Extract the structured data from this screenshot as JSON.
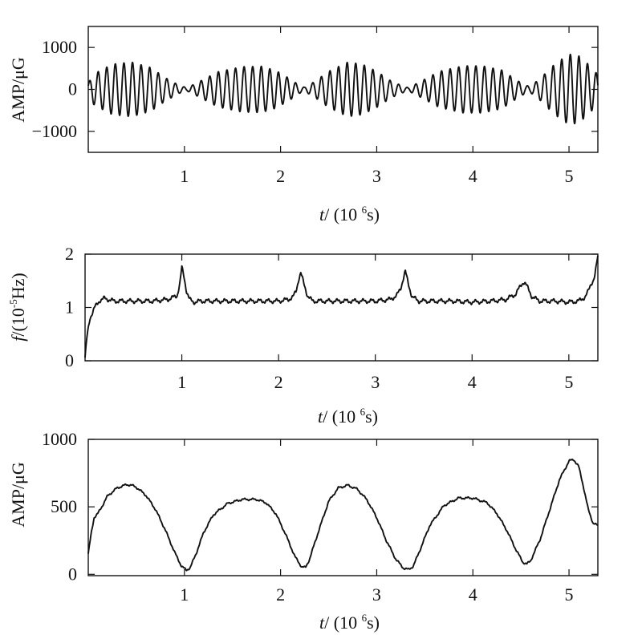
{
  "chart_data": [
    {
      "type": "line",
      "ylabel": "AMP/μG",
      "xlabel_italic": "t",
      "xlabel_text": "/ (10",
      "xlabel_sup": "6",
      "xlabel_unit": "s)",
      "xlim": [
        0,
        5.3
      ],
      "ylim": [
        -1500,
        1500
      ],
      "xticks": [
        1,
        2,
        3,
        4,
        5
      ],
      "yticks": [
        -1000,
        0,
        1000
      ],
      "ytick_labels": [
        "−1000",
        "0",
        "1000"
      ],
      "signal": {
        "carrier_frequency_per_1e6s": 11.2,
        "envelope_amp": [
          [
            0,
            150
          ],
          [
            0.05,
            350
          ],
          [
            0.1,
            420
          ],
          [
            0.25,
            600
          ],
          [
            0.45,
            650
          ],
          [
            0.65,
            520
          ],
          [
            0.8,
            280
          ],
          [
            0.95,
            90
          ],
          [
            1.03,
            40
          ],
          [
            1.15,
            180
          ],
          [
            1.35,
            420
          ],
          [
            1.6,
            540
          ],
          [
            1.8,
            550
          ],
          [
            1.95,
            450
          ],
          [
            2.1,
            250
          ],
          [
            2.2,
            90
          ],
          [
            2.25,
            50
          ],
          [
            2.35,
            180
          ],
          [
            2.5,
            430
          ],
          [
            2.7,
            650
          ],
          [
            2.85,
            600
          ],
          [
            3.0,
            430
          ],
          [
            3.15,
            200
          ],
          [
            3.28,
            70
          ],
          [
            3.33,
            40
          ],
          [
            3.45,
            180
          ],
          [
            3.65,
            430
          ],
          [
            3.9,
            560
          ],
          [
            4.1,
            560
          ],
          [
            4.3,
            460
          ],
          [
            4.45,
            230
          ],
          [
            4.55,
            90
          ],
          [
            4.6,
            80
          ],
          [
            4.7,
            260
          ],
          [
            4.85,
            600
          ],
          [
            5.0,
            840
          ],
          [
            5.1,
            800
          ],
          [
            5.2,
            600
          ],
          [
            5.3,
            350
          ]
        ]
      }
    },
    {
      "type": "line",
      "ylabel": "f",
      "ylabel_text": "/(10",
      "ylabel_sup": "-5",
      "ylabel_unit": "Hz)",
      "xlabel_italic": "t",
      "xlabel_text": "/ (10",
      "xlabel_sup": "6",
      "xlabel_unit": "s)",
      "xlim": [
        0,
        5.3
      ],
      "ylim": [
        0,
        2
      ],
      "xticks": [
        1,
        2,
        3,
        4,
        5
      ],
      "yticks": [
        0,
        1,
        2
      ],
      "ytick_labels": [
        "0",
        "1",
        "2"
      ],
      "series": [
        {
          "x": [
            0,
            0.02,
            0.05,
            0.1,
            0.15,
            0.2,
            0.3,
            0.5,
            0.7,
            0.85,
            0.9,
            0.95,
            0.98,
            1.0,
            1.02,
            1.05,
            1.08,
            1.12,
            1.2,
            1.4,
            1.6,
            1.8,
            2.0,
            2.1,
            2.15,
            2.18,
            2.21,
            2.23,
            2.26,
            2.3,
            2.35,
            2.45,
            2.6,
            2.8,
            3.0,
            3.15,
            3.22,
            3.26,
            3.29,
            3.31,
            3.34,
            3.38,
            3.45,
            3.6,
            3.8,
            4.0,
            4.2,
            4.35,
            4.45,
            4.5,
            4.53,
            4.55,
            4.58,
            4.62,
            4.7,
            4.85,
            5.0,
            5.1,
            5.17,
            5.2,
            5.23,
            5.25,
            5.27,
            5.29,
            5.3
          ],
          "y": [
            0.05,
            0.45,
            0.8,
            1.0,
            1.13,
            1.17,
            1.12,
            1.12,
            1.12,
            1.15,
            1.18,
            1.22,
            1.45,
            1.75,
            1.6,
            1.3,
            1.15,
            1.1,
            1.12,
            1.12,
            1.12,
            1.12,
            1.12,
            1.15,
            1.2,
            1.3,
            1.55,
            1.65,
            1.45,
            1.22,
            1.12,
            1.12,
            1.12,
            1.12,
            1.12,
            1.15,
            1.22,
            1.35,
            1.55,
            1.68,
            1.45,
            1.2,
            1.12,
            1.12,
            1.12,
            1.1,
            1.12,
            1.15,
            1.25,
            1.4,
            1.48,
            1.45,
            1.35,
            1.2,
            1.12,
            1.12,
            1.1,
            1.12,
            1.2,
            1.3,
            1.45,
            1.5,
            1.6,
            1.85,
            1.95
          ],
          "ripple": 0.03
        }
      ]
    },
    {
      "type": "line",
      "ylabel": "AMP/μG",
      "xlabel_italic": "t",
      "xlabel_text": "/ (10",
      "xlabel_sup": "6",
      "xlabel_unit": "s)",
      "xlim": [
        0,
        5.3
      ],
      "ylim": [
        -10,
        1000
      ],
      "xticks": [
        1,
        2,
        3,
        4,
        5
      ],
      "yticks": [
        0,
        500,
        1000
      ],
      "ytick_labels": [
        "0",
        "500",
        "1000"
      ],
      "series": [
        {
          "x": [
            0,
            0.03,
            0.06,
            0.1,
            0.14,
            0.2,
            0.3,
            0.4,
            0.45,
            0.5,
            0.6,
            0.7,
            0.8,
            0.9,
            0.97,
            1.02,
            1.06,
            1.12,
            1.2,
            1.3,
            1.45,
            1.6,
            1.75,
            1.85,
            1.95,
            2.05,
            2.15,
            2.22,
            2.26,
            2.3,
            2.4,
            2.5,
            2.6,
            2.7,
            2.8,
            2.9,
            3.0,
            3.1,
            3.2,
            3.28,
            3.33,
            3.38,
            3.45,
            3.55,
            3.7,
            3.85,
            4.0,
            4.15,
            4.25,
            4.35,
            4.45,
            4.52,
            4.56,
            4.6,
            4.7,
            4.8,
            4.9,
            5.0,
            5.05,
            5.1,
            5.15,
            5.2,
            5.25,
            5.3
          ],
          "y": [
            150,
            300,
            420,
            450,
            500,
            580,
            640,
            665,
            660,
            645,
            585,
            480,
            330,
            160,
            60,
            30,
            50,
            150,
            310,
            440,
            525,
            555,
            555,
            530,
            450,
            300,
            130,
            55,
            50,
            110,
            330,
            540,
            640,
            660,
            630,
            550,
            420,
            250,
            110,
            45,
            35,
            60,
            180,
            360,
            510,
            565,
            565,
            530,
            450,
            330,
            180,
            90,
            75,
            100,
            260,
            480,
            700,
            840,
            850,
            800,
            650,
            480,
            380,
            360
          ],
          "ripple": 6
        }
      ]
    }
  ]
}
